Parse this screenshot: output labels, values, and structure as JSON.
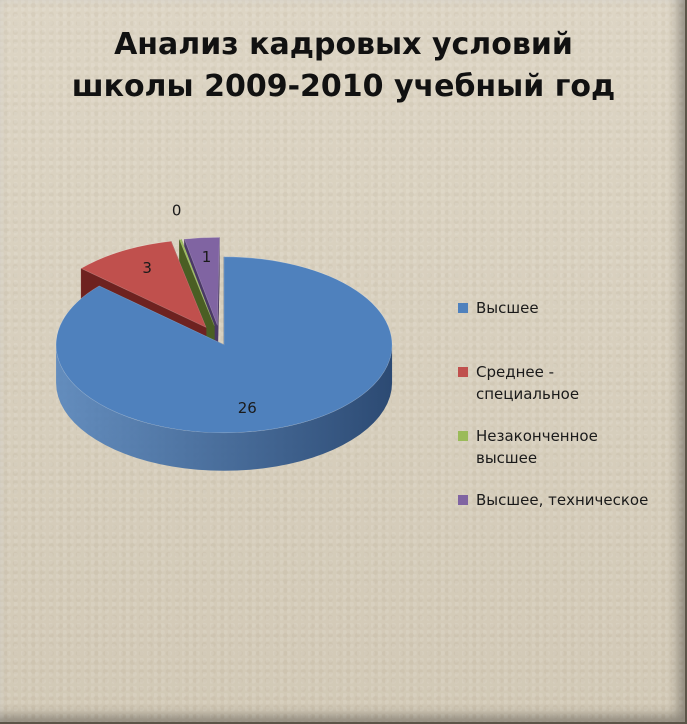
{
  "chart_data": {
    "type": "pie",
    "title_lines": [
      "Анализ кадровых условий",
      "школы 2009-2010 учебный год"
    ],
    "categories": [
      "Высшее",
      "Среднее - специальное",
      "Незаконченное высшее",
      "Высшее, техническое"
    ],
    "legend_lines": [
      [
        "Высшее"
      ],
      [
        "Среднее -",
        "специальное"
      ],
      [
        "Незаконченное",
        "высшее"
      ],
      [
        "Высшее, техническое"
      ]
    ],
    "values": [
      26,
      3,
      0,
      1
    ],
    "data_labels": [
      "26",
      "3",
      "0",
      "1"
    ],
    "colors": [
      "#4f81bd",
      "#c0504d",
      "#9bbb59",
      "#8064a2"
    ],
    "side_colors": [
      "#2c4a73",
      "#6e2220",
      "#4a5e23",
      "#4a3866"
    ],
    "three_d": true,
    "exploded": true,
    "legend_position": "right"
  }
}
